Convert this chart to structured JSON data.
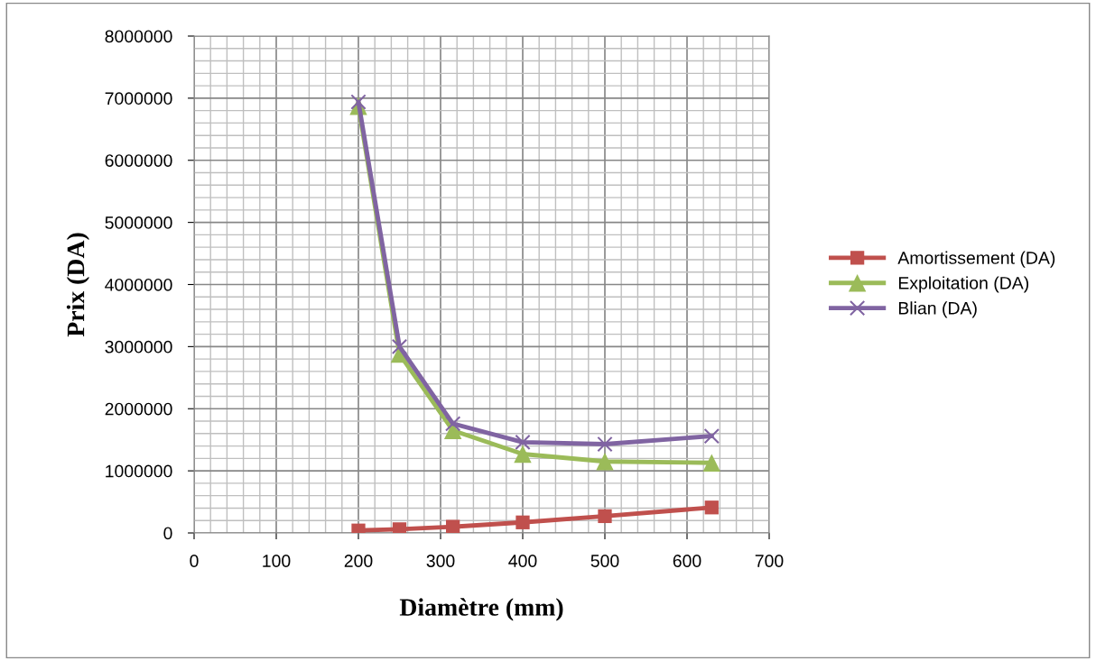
{
  "chart_data": {
    "type": "line",
    "xlabel": "Diamètre (mm)",
    "ylabel": "Prix (DA)",
    "x": [
      200,
      250,
      315,
      400,
      500,
      630
    ],
    "series": [
      {
        "name": "Amortissement (DA)",
        "color": "#c0504d",
        "marker": "square",
        "values": [
          40000,
          60000,
          100000,
          170000,
          270000,
          410000
        ]
      },
      {
        "name": "Exploitation (DA)",
        "color": "#9bbb59",
        "marker": "triangle",
        "values": [
          6870000,
          2880000,
          1650000,
          1270000,
          1150000,
          1130000
        ]
      },
      {
        "name": "Blian (DA)",
        "color": "#8064a2",
        "marker": "cross",
        "values": [
          6940000,
          3000000,
          1760000,
          1460000,
          1430000,
          1560000
        ]
      }
    ],
    "xlim": [
      0,
      700
    ],
    "xticks": [
      0,
      100,
      200,
      300,
      400,
      500,
      600,
      700
    ],
    "ylim": [
      0,
      8000000
    ],
    "yticks": [
      0,
      1000000,
      2000000,
      3000000,
      4000000,
      5000000,
      6000000,
      7000000,
      8000000
    ],
    "grid": true,
    "legend": "right",
    "line_style": "solid"
  }
}
